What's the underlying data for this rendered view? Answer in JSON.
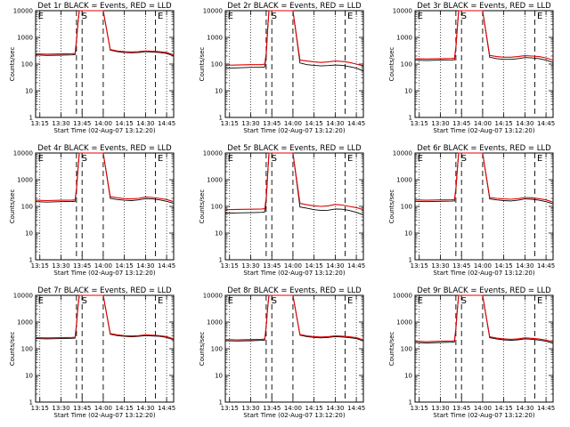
{
  "figure": {
    "colors": {
      "events": "#000000",
      "lld": "#e00000",
      "frame": "#000000"
    },
    "yscale": "log"
  },
  "chart_data": [
    {
      "type": "line",
      "title": "Det 1r BLACK = Events, RED = LLD",
      "xlabel": "Start Time (02-Aug-07 13:12:20)",
      "ylabel": "Counts/sec",
      "xticks": [
        "13:15",
        "13:30",
        "13:45",
        "14:00",
        "14:15",
        "14:30",
        "14:45"
      ],
      "yticks": [
        "1",
        "10",
        "100",
        "1000",
        "10000"
      ],
      "ylim": [
        1,
        10000
      ],
      "markers": [
        "E",
        "S",
        "E"
      ],
      "x": [
        "13:12",
        "13:20",
        "13:30",
        "13:38",
        "13:40",
        "13:41",
        "13:42",
        "13:43",
        "13:44",
        "13:45",
        "13:50",
        "13:55",
        "14:00",
        "14:05",
        "14:10",
        "14:15",
        "14:20",
        "14:25",
        "14:30",
        "14:35",
        "14:40",
        "14:45",
        "14:50"
      ],
      "series": [
        {
          "name": "Events",
          "values": [
            220,
            210,
            215,
            220,
            225,
            700,
            3000,
            10000,
            10000,
            10000,
            10000,
            10000,
            10000,
            330,
            290,
            270,
            265,
            270,
            290,
            280,
            270,
            250,
            200
          ]
        },
        {
          "name": "LLD",
          "values": [
            240,
            235,
            240,
            245,
            250,
            800,
            3200,
            10000,
            10000,
            10000,
            10000,
            10000,
            10000,
            350,
            310,
            290,
            285,
            290,
            310,
            300,
            290,
            270,
            220
          ]
        }
      ]
    },
    {
      "type": "line",
      "title": "Det 2r BLACK = Events, RED = LLD",
      "xlabel": "Start Time (02-Aug-07 13:12:20)",
      "ylabel": "Counts/sec",
      "xticks": [
        "13:15",
        "13:30",
        "13:45",
        "14:00",
        "14:15",
        "14:30",
        "14:45"
      ],
      "yticks": [
        "1",
        "10",
        "100",
        "1000",
        "10000"
      ],
      "ylim": [
        1,
        10000
      ],
      "markers": [
        "E",
        "S",
        "E"
      ],
      "x": [
        "13:12",
        "13:20",
        "13:30",
        "13:38",
        "13:40",
        "13:41",
        "13:42",
        "13:43",
        "13:44",
        "13:45",
        "13:50",
        "13:55",
        "14:00",
        "14:05",
        "14:10",
        "14:15",
        "14:20",
        "14:25",
        "14:30",
        "14:35",
        "14:40",
        "14:45",
        "14:50"
      ],
      "series": [
        {
          "name": "Events",
          "values": [
            70,
            72,
            75,
            75,
            78,
            200,
            1500,
            10000,
            10000,
            10000,
            10000,
            10000,
            10000,
            110,
            95,
            90,
            85,
            88,
            92,
            90,
            80,
            70,
            55
          ]
        },
        {
          "name": "LLD",
          "values": [
            90,
            92,
            95,
            95,
            100,
            260,
            2000,
            10000,
            10000,
            10000,
            10000,
            10000,
            10000,
            140,
            130,
            120,
            115,
            120,
            130,
            125,
            115,
            100,
            85
          ]
        }
      ]
    },
    {
      "type": "line",
      "title": "Det 3r BLACK = Events, RED = LLD",
      "xlabel": "Start Time (02-Aug-07 13:12:20)",
      "ylabel": "Counts/sec",
      "xticks": [
        "13:15",
        "13:30",
        "13:45",
        "14:00",
        "14:15",
        "14:30",
        "14:45"
      ],
      "yticks": [
        "1",
        "10",
        "100",
        "1000",
        "10000"
      ],
      "ylim": [
        1,
        10000
      ],
      "markers": [
        "E",
        "S",
        "E"
      ],
      "x": [
        "13:12",
        "13:20",
        "13:30",
        "13:38",
        "13:40",
        "13:41",
        "13:42",
        "13:43",
        "13:44",
        "13:45",
        "13:50",
        "13:55",
        "14:00",
        "14:05",
        "14:10",
        "14:15",
        "14:20",
        "14:25",
        "14:30",
        "14:35",
        "14:40",
        "14:45",
        "14:50"
      ],
      "series": [
        {
          "name": "Events",
          "values": [
            140,
            135,
            140,
            142,
            145,
            400,
            2000,
            10000,
            10000,
            10000,
            10000,
            10000,
            10000,
            180,
            160,
            150,
            150,
            160,
            175,
            170,
            160,
            140,
            115
          ]
        },
        {
          "name": "LLD",
          "values": [
            160,
            155,
            160,
            162,
            165,
            450,
            2200,
            10000,
            10000,
            10000,
            10000,
            10000,
            10000,
            210,
            190,
            180,
            180,
            190,
            205,
            200,
            190,
            170,
            140
          ]
        }
      ]
    },
    {
      "type": "line",
      "title": "Det 4r BLACK = Events, RED = LLD",
      "xlabel": "Start Time (02-Aug-07 13:12:20)",
      "ylabel": "Counts/sec",
      "xticks": [
        "13:15",
        "13:30",
        "13:45",
        "14:00",
        "14:15",
        "14:30",
        "14:45"
      ],
      "yticks": [
        "1",
        "10",
        "100",
        "1000",
        "10000"
      ],
      "ylim": [
        1,
        10000
      ],
      "markers": [
        "E",
        "S",
        "E"
      ],
      "x": [
        "13:12",
        "13:20",
        "13:30",
        "13:38",
        "13:40",
        "13:41",
        "13:42",
        "13:43",
        "13:44",
        "13:45",
        "13:50",
        "13:55",
        "14:00",
        "14:05",
        "14:10",
        "14:15",
        "14:20",
        "14:25",
        "14:30",
        "14:35",
        "14:40",
        "14:45",
        "14:50"
      ],
      "series": [
        {
          "name": "Events",
          "values": [
            150,
            145,
            150,
            152,
            155,
            420,
            2000,
            10000,
            10000,
            10000,
            10000,
            10000,
            10000,
            200,
            180,
            170,
            165,
            175,
            195,
            190,
            175,
            155,
            130
          ]
        },
        {
          "name": "LLD",
          "values": [
            170,
            165,
            170,
            172,
            175,
            480,
            2300,
            10000,
            10000,
            10000,
            10000,
            10000,
            10000,
            230,
            210,
            195,
            190,
            200,
            225,
            215,
            200,
            180,
            150
          ]
        }
      ]
    },
    {
      "type": "line",
      "title": "Det 5r BLACK = Events, RED = LLD",
      "xlabel": "Start Time (02-Aug-07 13:12:20)",
      "ylabel": "Counts/sec",
      "xticks": [
        "13:15",
        "13:30",
        "13:45",
        "14:00",
        "14:15",
        "14:30",
        "14:45"
      ],
      "yticks": [
        "1",
        "10",
        "100",
        "1000",
        "10000"
      ],
      "ylim": [
        1,
        10000
      ],
      "markers": [
        "E",
        "S",
        "E"
      ],
      "x": [
        "13:12",
        "13:20",
        "13:30",
        "13:38",
        "13:40",
        "13:41",
        "13:42",
        "13:43",
        "13:44",
        "13:45",
        "13:50",
        "13:55",
        "14:00",
        "14:05",
        "14:10",
        "14:15",
        "14:20",
        "14:25",
        "14:30",
        "14:35",
        "14:40",
        "14:45",
        "14:50"
      ],
      "series": [
        {
          "name": "Events",
          "values": [
            55,
            57,
            58,
            60,
            62,
            160,
            1200,
            10000,
            10000,
            10000,
            10000,
            10000,
            10000,
            95,
            85,
            75,
            70,
            72,
            80,
            78,
            70,
            60,
            48
          ]
        },
        {
          "name": "LLD",
          "values": [
            75,
            77,
            78,
            80,
            82,
            210,
            1500,
            10000,
            10000,
            10000,
            10000,
            10000,
            10000,
            130,
            115,
            105,
            100,
            105,
            118,
            112,
            100,
            90,
            75
          ]
        }
      ]
    },
    {
      "type": "line",
      "title": "Det 6r BLACK = Events, RED = LLD",
      "xlabel": "Start Time (02-Aug-07 13:12:20)",
      "ylabel": "Counts/sec",
      "xticks": [
        "13:15",
        "13:30",
        "13:45",
        "14:00",
        "14:15",
        "14:30",
        "14:45"
      ],
      "yticks": [
        "1",
        "10",
        "100",
        "1000",
        "10000"
      ],
      "ylim": [
        1,
        10000
      ],
      "markers": [
        "E",
        "S",
        "E"
      ],
      "x": [
        "13:12",
        "13:20",
        "13:30",
        "13:38",
        "13:40",
        "13:41",
        "13:42",
        "13:43",
        "13:44",
        "13:45",
        "13:50",
        "13:55",
        "14:00",
        "14:05",
        "14:10",
        "14:15",
        "14:20",
        "14:25",
        "14:30",
        "14:35",
        "14:40",
        "14:45",
        "14:50"
      ],
      "series": [
        {
          "name": "Events",
          "values": [
            155,
            150,
            155,
            157,
            160,
            430,
            2100,
            10000,
            10000,
            10000,
            10000,
            10000,
            10000,
            190,
            175,
            165,
            160,
            170,
            190,
            185,
            170,
            150,
            125
          ]
        },
        {
          "name": "LLD",
          "values": [
            175,
            170,
            175,
            177,
            180,
            490,
            2400,
            10000,
            10000,
            10000,
            10000,
            10000,
            10000,
            215,
            200,
            190,
            185,
            195,
            215,
            210,
            195,
            175,
            145
          ]
        }
      ]
    },
    {
      "type": "line",
      "title": "Det 7r BLACK = Events, RED = LLD",
      "xlabel": "Start Time (02-Aug-07 13:12:20)",
      "ylabel": "Counts/sec",
      "xticks": [
        "13:15",
        "13:30",
        "13:45",
        "14:00",
        "14:15",
        "14:30",
        "14:45"
      ],
      "yticks": [
        "1",
        "10",
        "100",
        "1000",
        "10000"
      ],
      "ylim": [
        1,
        10000
      ],
      "markers": [
        "E",
        "S",
        "E"
      ],
      "x": [
        "13:12",
        "13:20",
        "13:30",
        "13:38",
        "13:40",
        "13:41",
        "13:42",
        "13:43",
        "13:44",
        "13:45",
        "13:50",
        "13:55",
        "14:00",
        "14:05",
        "14:10",
        "14:15",
        "14:20",
        "14:25",
        "14:30",
        "14:35",
        "14:40",
        "14:45",
        "14:50"
      ],
      "series": [
        {
          "name": "Events",
          "values": [
            240,
            235,
            240,
            245,
            250,
            750,
            3200,
            10000,
            10000,
            10000,
            10000,
            10000,
            10000,
            350,
            310,
            290,
            280,
            290,
            310,
            300,
            290,
            265,
            215
          ]
        },
        {
          "name": "LLD",
          "values": [
            260,
            255,
            260,
            265,
            270,
            820,
            3500,
            10000,
            10000,
            10000,
            10000,
            10000,
            10000,
            370,
            330,
            310,
            300,
            310,
            330,
            320,
            310,
            285,
            235
          ]
        }
      ]
    },
    {
      "type": "line",
      "title": "Det 8r BLACK = Events, RED = LLD",
      "xlabel": "Start Time (02-Aug-07 13:12:20)",
      "ylabel": "Counts/sec",
      "xticks": [
        "13:15",
        "13:30",
        "13:45",
        "14:00",
        "14:15",
        "14:30",
        "14:45"
      ],
      "yticks": [
        "1",
        "10",
        "100",
        "1000",
        "10000"
      ],
      "ylim": [
        1,
        10000
      ],
      "markers": [
        "E",
        "S",
        "E"
      ],
      "x": [
        "13:12",
        "13:20",
        "13:30",
        "13:38",
        "13:40",
        "13:41",
        "13:42",
        "13:43",
        "13:44",
        "13:45",
        "13:50",
        "13:55",
        "14:00",
        "14:05",
        "14:10",
        "14:15",
        "14:20",
        "14:25",
        "14:30",
        "14:35",
        "14:40",
        "14:45",
        "14:50"
      ],
      "series": [
        {
          "name": "Events",
          "values": [
            200,
            195,
            200,
            205,
            210,
            650,
            3000,
            10000,
            10000,
            10000,
            10000,
            10000,
            10000,
            320,
            285,
            265,
            255,
            265,
            285,
            275,
            260,
            240,
            195
          ]
        },
        {
          "name": "LLD",
          "values": [
            220,
            215,
            220,
            225,
            230,
            700,
            3200,
            10000,
            10000,
            10000,
            10000,
            10000,
            10000,
            340,
            305,
            285,
            275,
            285,
            305,
            295,
            280,
            260,
            215
          ]
        }
      ]
    },
    {
      "type": "line",
      "title": "Det 9r BLACK = Events, RED = LLD",
      "xlabel": "Start Time (02-Aug-07 13:12:20)",
      "ylabel": "Counts/sec",
      "xticks": [
        "13:15",
        "13:30",
        "13:45",
        "14:00",
        "14:15",
        "14:30",
        "14:45"
      ],
      "yticks": [
        "1",
        "10",
        "100",
        "1000",
        "10000"
      ],
      "ylim": [
        1,
        10000
      ],
      "markers": [
        "E",
        "S",
        "E"
      ],
      "x": [
        "13:12",
        "13:20",
        "13:30",
        "13:38",
        "13:40",
        "13:41",
        "13:42",
        "13:43",
        "13:44",
        "13:45",
        "13:50",
        "13:55",
        "14:00",
        "14:05",
        "14:10",
        "14:15",
        "14:20",
        "14:25",
        "14:30",
        "14:35",
        "14:40",
        "14:45",
        "14:50"
      ],
      "series": [
        {
          "name": "Events",
          "values": [
            170,
            165,
            170,
            175,
            180,
            550,
            2600,
            10000,
            10000,
            10000,
            10000,
            10000,
            10000,
            260,
            230,
            215,
            205,
            215,
            235,
            225,
            210,
            190,
            160
          ]
        },
        {
          "name": "LLD",
          "values": [
            190,
            185,
            190,
            195,
            200,
            600,
            2800,
            10000,
            10000,
            10000,
            10000,
            10000,
            10000,
            280,
            250,
            235,
            225,
            235,
            255,
            245,
            230,
            210,
            180
          ]
        }
      ]
    }
  ]
}
